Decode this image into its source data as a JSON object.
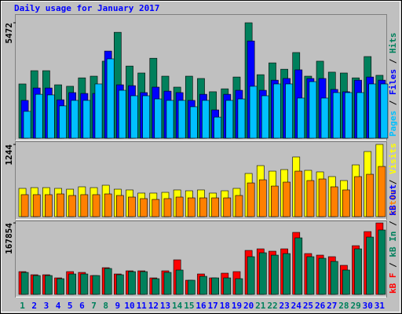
{
  "chart_data": [
    {
      "type": "bar",
      "title": "Daily usage for January 2017",
      "title_color": "#0000ff",
      "ylim": [
        0,
        5472
      ],
      "yticks": [
        5472
      ],
      "legend": "right",
      "legend_reverse": true,
      "legend_separator": " / ",
      "series": [
        {
          "name": "Hits",
          "color": "#00805c",
          "values": [
            2570,
            3200,
            3200,
            2530,
            2460,
            2860,
            2940,
            3650,
            5020,
            3420,
            3090,
            3790,
            2940,
            2420,
            2940,
            2830,
            2200,
            2340,
            2900,
            5472,
            3010,
            3570,
            3270,
            4060,
            2940,
            3650,
            3130,
            3090,
            2860,
            3870,
            2980
          ]
        },
        {
          "name": "Files",
          "color": "#0000ff",
          "values": [
            1790,
            2380,
            2380,
            1820,
            2160,
            2120,
            2120,
            4130,
            2530,
            2490,
            2160,
            2420,
            2230,
            2160,
            1790,
            2080,
            1340,
            2080,
            2270,
            4610,
            2270,
            2750,
            2830,
            3240,
            2830,
            2830,
            2310,
            2200,
            2750,
            2900,
            2750
          ]
        },
        {
          "name": "Pages",
          "color": "#00c0ff",
          "values": [
            1270,
            2080,
            2050,
            1530,
            1790,
            1790,
            2570,
            3760,
            2270,
            2010,
            2010,
            1860,
            1790,
            1790,
            1490,
            1790,
            1000,
            1790,
            1860,
            2460,
            2010,
            2570,
            2570,
            1900,
            2680,
            1900,
            2160,
            2160,
            2160,
            2570,
            2570
          ]
        }
      ]
    },
    {
      "type": "bar",
      "ylim": [
        0,
        1244
      ],
      "yticks": [
        1244
      ],
      "legend": "right",
      "legend_reverse": true,
      "legend_separator": " / ",
      "series": [
        {
          "name": "Visits",
          "color": "#ffff00",
          "values": [
            487,
            500,
            500,
            487,
            473,
            514,
            500,
            541,
            473,
            460,
            406,
            406,
            419,
            460,
            446,
            460,
            406,
            446,
            487,
            744,
            879,
            784,
            811,
            1028,
            798,
            771,
            690,
            622,
            892,
            1122,
            1244
          ]
        },
        {
          "name": "Sites",
          "color": "#ff8000",
          "values": [
            379,
            379,
            379,
            392,
            365,
            379,
            379,
            392,
            365,
            338,
            311,
            297,
            311,
            338,
            324,
            324,
            324,
            324,
            365,
            581,
            635,
            527,
            595,
            784,
            622,
            649,
            514,
            460,
            690,
            730,
            865
          ]
        }
      ]
    },
    {
      "type": "bar",
      "ylim": [
        0,
        167854
      ],
      "yticks": [
        167854
      ],
      "legend": "right",
      "legend_reverse": false,
      "legend_separator": " / ",
      "categories": [
        "1",
        "2",
        "3",
        "4",
        "5",
        "6",
        "7",
        "8",
        "9",
        "10",
        "11",
        "12",
        "13",
        "14",
        "15",
        "16",
        "17",
        "18",
        "19",
        "20",
        "21",
        "22",
        "23",
        "24",
        "25",
        "26",
        "27",
        "28",
        "29",
        "30",
        "31"
      ],
      "category_colors": [
        "#00805c",
        "#0000ff",
        "#0000ff",
        "#0000ff",
        "#0000ff",
        "#0000ff",
        "#00805c",
        "#00805c",
        "#0000ff",
        "#0000ff",
        "#0000ff",
        "#0000ff",
        "#0000ff",
        "#00805c",
        "#00805c",
        "#0000ff",
        "#0000ff",
        "#0000ff",
        "#0000ff",
        "#0000ff",
        "#00805c",
        "#00805c",
        "#0000ff",
        "#0000ff",
        "#0000ff",
        "#0000ff",
        "#0000ff",
        "#00805c",
        "#00805c",
        "#0000ff",
        "#0000ff"
      ],
      "series": [
        {
          "name": "kB F",
          "color": "#ff0000",
          "values": [
            53490,
            46110,
            46110,
            38730,
            53490,
            51650,
            44270,
            62710,
            47960,
            55330,
            55330,
            38730,
            55330,
            81160,
            33200,
            47960,
            38730,
            49800,
            53490,
            103290,
            106980,
            101450,
            106980,
            145710,
            95910,
            92220,
            88530,
            68250,
            114360,
            147560,
            167854
          ]
        },
        {
          "name": "kB In",
          "color": "#00805c",
          "values": [
            51650,
            44270,
            44270,
            36890,
            47960,
            47960,
            44270,
            60870,
            46110,
            53490,
            53490,
            36890,
            51650,
            57180,
            33200,
            42420,
            38730,
            38730,
            36890,
            88530,
            97760,
            92220,
            95910,
            132800,
            88530,
            84850,
            77470,
            57180,
            106980,
            134650,
            151250
          ]
        },
        {
          "name": "kB Out",
          "color": "#0000ff",
          "values": [
            null,
            null,
            null,
            null,
            null,
            null,
            null,
            null,
            null,
            null,
            null,
            null,
            null,
            null,
            null,
            null,
            null,
            null,
            null,
            null,
            null,
            null,
            null,
            null,
            null,
            null,
            null,
            null,
            null,
            null,
            null
          ]
        }
      ]
    }
  ]
}
